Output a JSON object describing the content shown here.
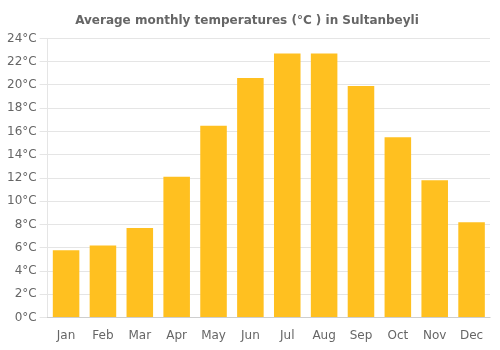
{
  "chart_data": {
    "type": "bar",
    "title": "Average monthly temperatures (°C ) in Sultanbeyli",
    "categories": [
      "Jan",
      "Feb",
      "Mar",
      "Apr",
      "May",
      "Jun",
      "Jul",
      "Aug",
      "Sep",
      "Oct",
      "Nov",
      "Dec"
    ],
    "values": [
      5.8,
      6.2,
      7.7,
      12.1,
      16.5,
      20.6,
      22.7,
      22.7,
      19.9,
      15.5,
      11.8,
      8.2
    ],
    "color": "#FFC020",
    "ylim": [
      0,
      24
    ],
    "yticks": [
      {
        "value": 0,
        "label": "0°C"
      },
      {
        "value": 2,
        "label": "2°C"
      },
      {
        "value": 4,
        "label": "4°C"
      },
      {
        "value": 6,
        "label": "6°C"
      },
      {
        "value": 8,
        "label": "8°C"
      },
      {
        "value": 10,
        "label": "10°C"
      },
      {
        "value": 12,
        "label": "12°C"
      },
      {
        "value": 14,
        "label": "14°C"
      },
      {
        "value": 16,
        "label": "16°C"
      },
      {
        "value": 18,
        "label": "18°C"
      },
      {
        "value": 20,
        "label": "20°C"
      },
      {
        "value": 22,
        "label": "22°C"
      },
      {
        "value": 24,
        "label": "24°C"
      }
    ],
    "grid": true
  }
}
